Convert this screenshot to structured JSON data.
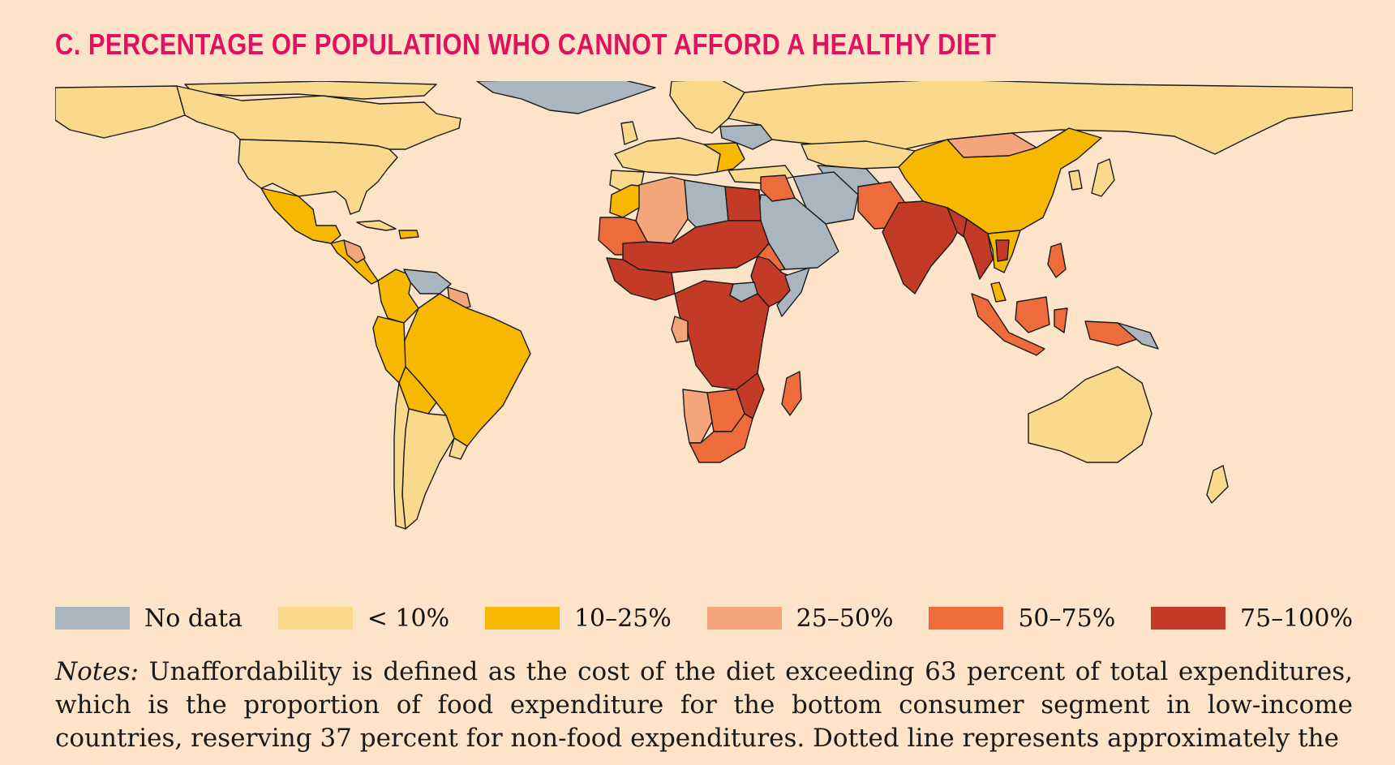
{
  "title": "C. PERCENTAGE OF POPULATION WHO CANNOT AFFORD A HEALTHY DIET",
  "colors": {
    "background": "#fde3c8",
    "title": "#e0115f",
    "no_data": "#a9b5bf",
    "lt10": "#fbd98c",
    "p10_25": "#f6b800",
    "p25_50": "#f4a57a",
    "p50_75": "#ee6b3c",
    "p75_100": "#c33a26"
  },
  "legend": [
    {
      "label": "No data",
      "color": "#a9b5bf"
    },
    {
      "label": "< 10%",
      "color": "#fbd98c"
    },
    {
      "label": "10–25%",
      "color": "#f6b800"
    },
    {
      "label": "25–50%",
      "color": "#f4a57a"
    },
    {
      "label": "50–75%",
      "color": "#ee6b3c"
    },
    {
      "label": "75–100%",
      "color": "#c33a26"
    }
  ],
  "notes": {
    "label": "Notes:",
    "text": "Unaffordability is defined as the cost of the diet exceeding 63 percent of total expenditures, which is the proportion of food expenditure for the bottom consumer segment in low-income countries, reserving 37 percent for non-food expenditures. Dotted line represents approximately the"
  }
}
